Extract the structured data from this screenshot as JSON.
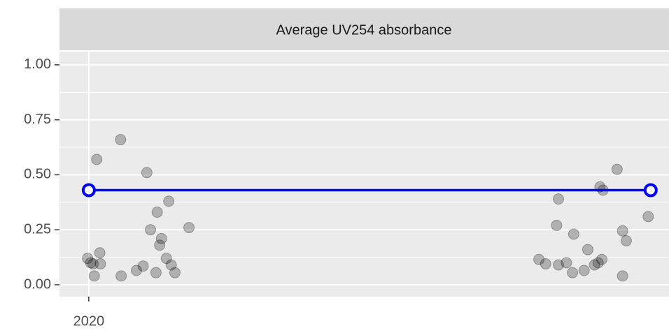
{
  "chart_data": {
    "type": "scatter",
    "title": "Average UV254 absorbance",
    "xlim": [
      2019.952,
      2020.95
    ],
    "xticks": [
      2020
    ],
    "ylim": [
      -0.054,
      1.06
    ],
    "yticks": [
      {
        "value": 0,
        "label": "0.00"
      },
      {
        "value": 0.25,
        "label": "0.25"
      },
      {
        "value": 0.5,
        "label": "0.50"
      },
      {
        "value": 0.75,
        "label": "0.75"
      },
      {
        "value": 1,
        "label": "1.00"
      }
    ],
    "grid": true,
    "series": [
      {
        "type": "scatter",
        "color": "#000000",
        "x": [
          2019.998,
          2020.003,
          2020.007,
          2020.013,
          2020.018,
          2020.009,
          2020.019,
          2020.052,
          2020.053,
          2020.078,
          2020.089,
          2020.095,
          2020.101,
          2020.112,
          2020.11,
          2020.116,
          2020.119,
          2020.131,
          2020.127,
          2020.135,
          2020.141,
          2020.164,
          2020.737,
          2020.748,
          2020.769,
          2020.766,
          2020.769,
          2020.782,
          2020.792,
          2020.794,
          2020.811,
          2020.817,
          2020.828,
          2020.834,
          2020.84,
          2020.837,
          2020.842,
          2020.865,
          2020.874,
          2020.88,
          2020.874,
          2020.916
        ],
        "values": [
          0.12,
          0.1,
          0.095,
          0.57,
          0.145,
          0.04,
          0.095,
          0.66,
          0.04,
          0.065,
          0.085,
          0.51,
          0.25,
          0.33,
          0.055,
          0.18,
          0.21,
          0.38,
          0.12,
          0.09,
          0.055,
          0.26,
          0.115,
          0.095,
          0.39,
          0.27,
          0.09,
          0.1,
          0.055,
          0.23,
          0.065,
          0.16,
          0.09,
          0.1,
          0.115,
          0.445,
          0.43,
          0.525,
          0.245,
          0.2,
          0.04,
          0.31
        ]
      },
      {
        "type": "line",
        "color": "#0000ff",
        "x": [
          2020.0,
          2020.92
        ],
        "values": [
          0.43,
          0.43
        ]
      }
    ]
  }
}
